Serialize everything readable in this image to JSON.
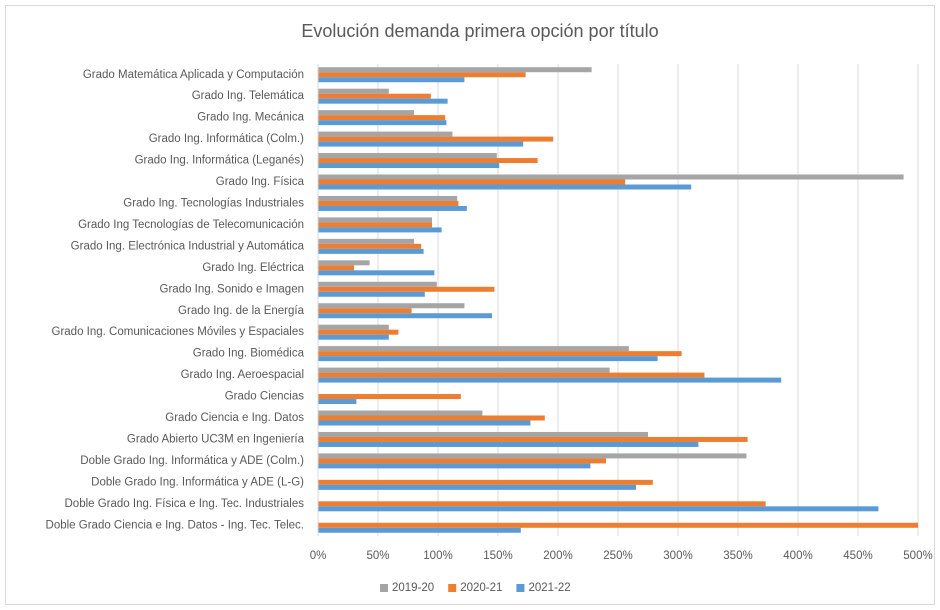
{
  "chart_data": {
    "type": "hbar",
    "title": "Evolución demanda primera opción por título",
    "categories": [
      "Grado Matemática Aplicada y Computación",
      "Grado Ing. Telemática",
      "Grado Ing. Mecánica",
      "Grado Ing. Informática (Colm.)",
      "Grado Ing. Informática (Leganés)",
      "Grado Ing. Física",
      "Grado Ing. Tecnologías Industriales",
      "Grado Ing Tecnologías de Telecomunicación",
      "Grado Ing. Electrónica Industrial y Automática",
      "Grado Ing. Eléctrica",
      "Grado Ing. Sonido e Imagen",
      "Grado Ing. de la Energía",
      "Grado Ing. Comunicaciones Móviles y Espaciales",
      "Grado Ing. Biomédica",
      "Grado Ing. Aeroespacial",
      "Grado Ciencias",
      "Grado Ciencia e Ing. Datos",
      "Grado Abierto UC3M en Ingeniería",
      "Doble Grado Ing. Informática y ADE (Colm.)",
      "Doble Grado Ing. Informática y ADE (L-G)",
      "Doble Grado Ing. Física e Ing. Tec. Industriales",
      "Doble Grado Ciencia e Ing. Datos - Ing. Tec. Telec."
    ],
    "series": [
      {
        "name": "2019-20",
        "color": "#a5a5a5",
        "values": [
          228,
          59,
          80,
          112,
          149,
          488,
          116,
          95,
          80,
          43,
          99,
          122,
          59,
          259,
          243,
          null,
          137,
          275,
          357,
          null,
          null,
          null
        ]
      },
      {
        "name": "2020-21",
        "color": "#ed7d31",
        "values": [
          173,
          94,
          106,
          196,
          183,
          256,
          117,
          95,
          86,
          30,
          147,
          78,
          67,
          303,
          322,
          119,
          189,
          358,
          240,
          279,
          373,
          500
        ]
      },
      {
        "name": "2021-22",
        "color": "#5b9bd5",
        "values": [
          122,
          108,
          107,
          171,
          151,
          311,
          124,
          103,
          88,
          97,
          89,
          145,
          59,
          283,
          386,
          32,
          177,
          317,
          227,
          265,
          467,
          169
        ]
      }
    ],
    "xlim": [
      0,
      500
    ],
    "xticks": [
      {
        "value": 0,
        "label": "0%"
      },
      {
        "value": 50,
        "label": "50%"
      },
      {
        "value": 100,
        "label": "100%"
      },
      {
        "value": 150,
        "label": "150%"
      },
      {
        "value": 200,
        "label": "200%"
      },
      {
        "value": 250,
        "label": "250%"
      },
      {
        "value": 300,
        "label": "300%"
      },
      {
        "value": 350,
        "label": "350%"
      },
      {
        "value": 400,
        "label": "400%"
      },
      {
        "value": 450,
        "label": "450%"
      },
      {
        "value": 500,
        "label": "500%"
      }
    ],
    "grid": true,
    "legend": "bottom"
  }
}
